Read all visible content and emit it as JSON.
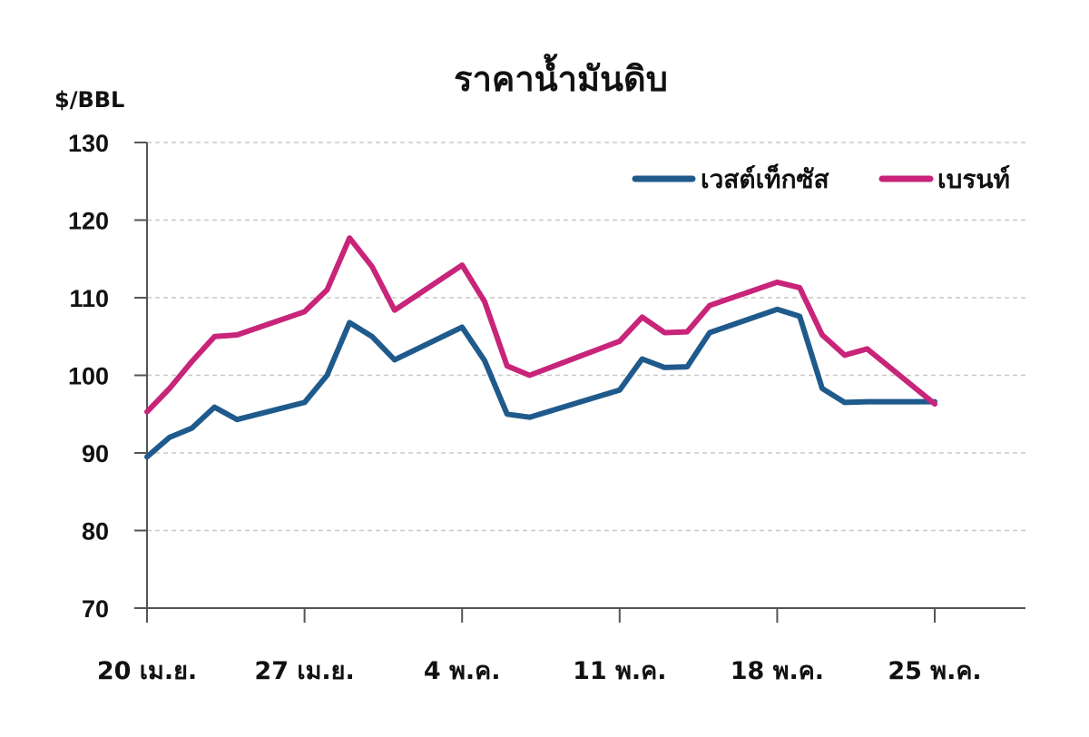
{
  "chart_data": {
    "type": "line",
    "title": "ราคาน้ำมันดิบ",
    "ylabel": "$/BBL",
    "xlabel": "",
    "ylim": [
      70,
      130
    ],
    "yticks": [
      70,
      80,
      90,
      100,
      110,
      120,
      130
    ],
    "xlim": [
      0,
      40
    ],
    "xticks": [
      {
        "x": 0,
        "label": "20 เม.ย."
      },
      {
        "x": 7,
        "label": "27 เม.ย."
      },
      {
        "x": 14,
        "label": "4 พ.ค."
      },
      {
        "x": 21,
        "label": "11 พ.ค."
      },
      {
        "x": 28,
        "label": "18 พ.ค."
      },
      {
        "x": 35,
        "label": "25 พ.ค."
      }
    ],
    "grid": true,
    "legend_position": "top-right",
    "series": [
      {
        "name": "เวสต์เท็กซัส",
        "color": "#1f5a8c",
        "points": [
          [
            0,
            89.5
          ],
          [
            1,
            92
          ],
          [
            2,
            93.2
          ],
          [
            3,
            95.9
          ],
          [
            4,
            94.3
          ],
          [
            7,
            96.5
          ],
          [
            8,
            100
          ],
          [
            9,
            106.8
          ],
          [
            10,
            105
          ],
          [
            11,
            102
          ],
          [
            14,
            106.2
          ],
          [
            15,
            101.9
          ],
          [
            16,
            95
          ],
          [
            17,
            94.6
          ],
          [
            21,
            98.1
          ],
          [
            22,
            102.1
          ],
          [
            23,
            101
          ],
          [
            24,
            101.1
          ],
          [
            25,
            105.5
          ],
          [
            28,
            108.5
          ],
          [
            29,
            107.6
          ],
          [
            30,
            98.3
          ],
          [
            31,
            96.5
          ],
          [
            32,
            96.6
          ],
          [
            35,
            96.6
          ]
        ]
      },
      {
        "name": "เบรนท์",
        "color": "#c8247a",
        "points": [
          [
            0,
            95.3
          ],
          [
            1,
            98.3
          ],
          [
            2,
            101.8
          ],
          [
            3,
            105
          ],
          [
            4,
            105.2
          ],
          [
            7,
            108.2
          ],
          [
            8,
            111
          ],
          [
            9,
            117.7
          ],
          [
            10,
            114
          ],
          [
            11,
            108.4
          ],
          [
            14,
            114.2
          ],
          [
            15,
            109.5
          ],
          [
            16,
            101.2
          ],
          [
            17,
            100
          ],
          [
            21,
            104.4
          ],
          [
            22,
            107.5
          ],
          [
            23,
            105.5
          ],
          [
            24,
            105.6
          ],
          [
            25,
            109
          ],
          [
            28,
            112
          ],
          [
            29,
            111.3
          ],
          [
            30,
            105.2
          ],
          [
            31,
            102.6
          ],
          [
            32,
            103.4
          ],
          [
            35,
            96.3
          ]
        ]
      }
    ]
  }
}
